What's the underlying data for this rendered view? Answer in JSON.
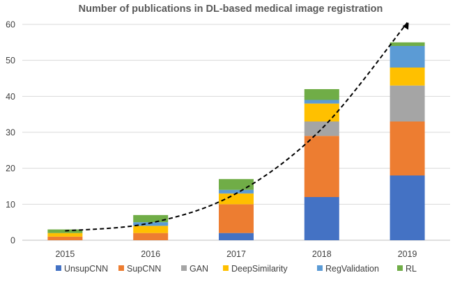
{
  "chart_data": {
    "type": "bar",
    "stacked": true,
    "title": "Number of publications in DL-based medical image registration",
    "xlabel": "",
    "ylabel": "",
    "categories": [
      "2015",
      "2016",
      "2017",
      "2018",
      "2019"
    ],
    "ylim": [
      0,
      60
    ],
    "yticks": [
      0,
      10,
      20,
      30,
      40,
      50,
      60
    ],
    "grid": true,
    "legend_position": "bottom",
    "series": [
      {
        "name": "UnsupCNN",
        "color": "#4472C4",
        "values": [
          0,
          0,
          2,
          12,
          18
        ]
      },
      {
        "name": "SupCNN",
        "color": "#ED7D31",
        "values": [
          1,
          2,
          8,
          17,
          15
        ]
      },
      {
        "name": "GAN",
        "color": "#A5A5A5",
        "values": [
          0,
          0,
          0,
          4,
          10
        ]
      },
      {
        "name": "DeepSimilarity",
        "color": "#FFC000",
        "values": [
          1,
          2,
          3,
          5,
          5
        ]
      },
      {
        "name": "RegValidation",
        "color": "#5B9BD5",
        "values": [
          0,
          1,
          1,
          1,
          6
        ]
      },
      {
        "name": "RL",
        "color": "#70AD47",
        "values": [
          1,
          2,
          3,
          3,
          1
        ]
      }
    ],
    "trend_line": {
      "style": "dashed",
      "color": "#000000",
      "arrow": true,
      "x": [
        0.0,
        1.0,
        2.0,
        3.0,
        4.0
      ],
      "y": [
        2.6,
        4.8,
        13.0,
        31.0,
        60.5
      ]
    }
  }
}
